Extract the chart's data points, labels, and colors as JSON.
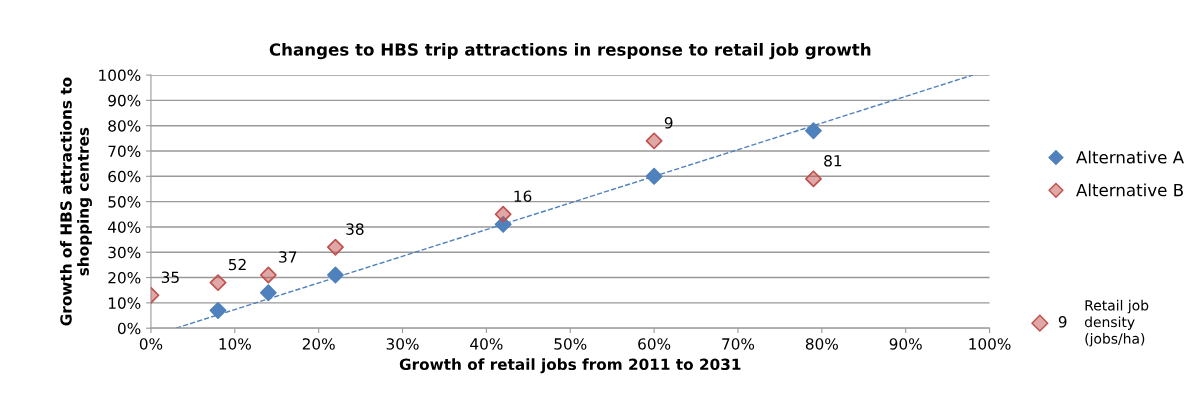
{
  "chart_data": {
    "type": "scatter",
    "title": "Changes to HBS trip attractions in response to retail job growth",
    "xlabel": "Growth of retail jobs from 2011 to 2031",
    "ylabel": "Growth of HBS attractions to\nshopping centres",
    "series": [
      {
        "name": "Alternative A",
        "color": "#4f81bd",
        "x": [
          8,
          14,
          22,
          42,
          60,
          79
        ],
        "values": [
          7,
          14,
          21,
          41,
          60,
          78
        ]
      },
      {
        "name": "Alternative B",
        "color": "#c0504d",
        "x": [
          0,
          8,
          14,
          22,
          42,
          60,
          79
        ],
        "values": [
          13,
          18,
          21,
          32,
          45,
          74,
          59
        ]
      },
      {
        "type": "line",
        "color": "#4f81bd",
        "line_style": "dashed",
        "marker": "none",
        "x": [
          3,
          98
        ],
        "values": [
          0,
          100
        ]
      }
    ],
    "xlim": [
      0,
      100
    ],
    "ylim": [
      0,
      100
    ],
    "xticks": [
      {
        "value": 0,
        "label": "0%"
      },
      {
        "value": 10,
        "label": "10%"
      },
      {
        "value": 20,
        "label": "20%"
      },
      {
        "value": 30,
        "label": "30%"
      },
      {
        "value": 40,
        "label": "40%"
      },
      {
        "value": 50,
        "label": "50%"
      },
      {
        "value": 60,
        "label": "60%"
      },
      {
        "value": 70,
        "label": "70%"
      },
      {
        "value": 80,
        "label": "80%"
      },
      {
        "value": 90,
        "label": "90%"
      },
      {
        "value": 100,
        "label": "100%"
      }
    ],
    "yticks": [
      {
        "value": 0,
        "label": "0%"
      },
      {
        "value": 10,
        "label": "10%"
      },
      {
        "value": 20,
        "label": "20%"
      },
      {
        "value": 30,
        "label": "30%"
      },
      {
        "value": 40,
        "label": "40%"
      },
      {
        "value": 50,
        "label": "50%"
      },
      {
        "value": 60,
        "label": "60%"
      },
      {
        "value": 70,
        "label": "70%"
      },
      {
        "value": 80,
        "label": "80%"
      },
      {
        "value": 90,
        "label": "90%"
      },
      {
        "value": 100,
        "label": "100%"
      }
    ],
    "grid": "y",
    "legend": "right",
    "marker": "diamond",
    "annotations": [
      {
        "text": "35",
        "x": 0,
        "y": 13
      },
      {
        "text": "52",
        "x": 8,
        "y": 18
      },
      {
        "text": "37",
        "x": 14,
        "y": 21
      },
      {
        "text": "38",
        "x": 22,
        "y": 32
      },
      {
        "text": "16",
        "x": 42,
        "y": 45
      },
      {
        "text": "9",
        "x": 60,
        "y": 74
      },
      {
        "text": "81",
        "x": 79,
        "y": 59
      },
      "9",
      "Retail job\ndensity\n(jobs/ha)"
    ]
  }
}
